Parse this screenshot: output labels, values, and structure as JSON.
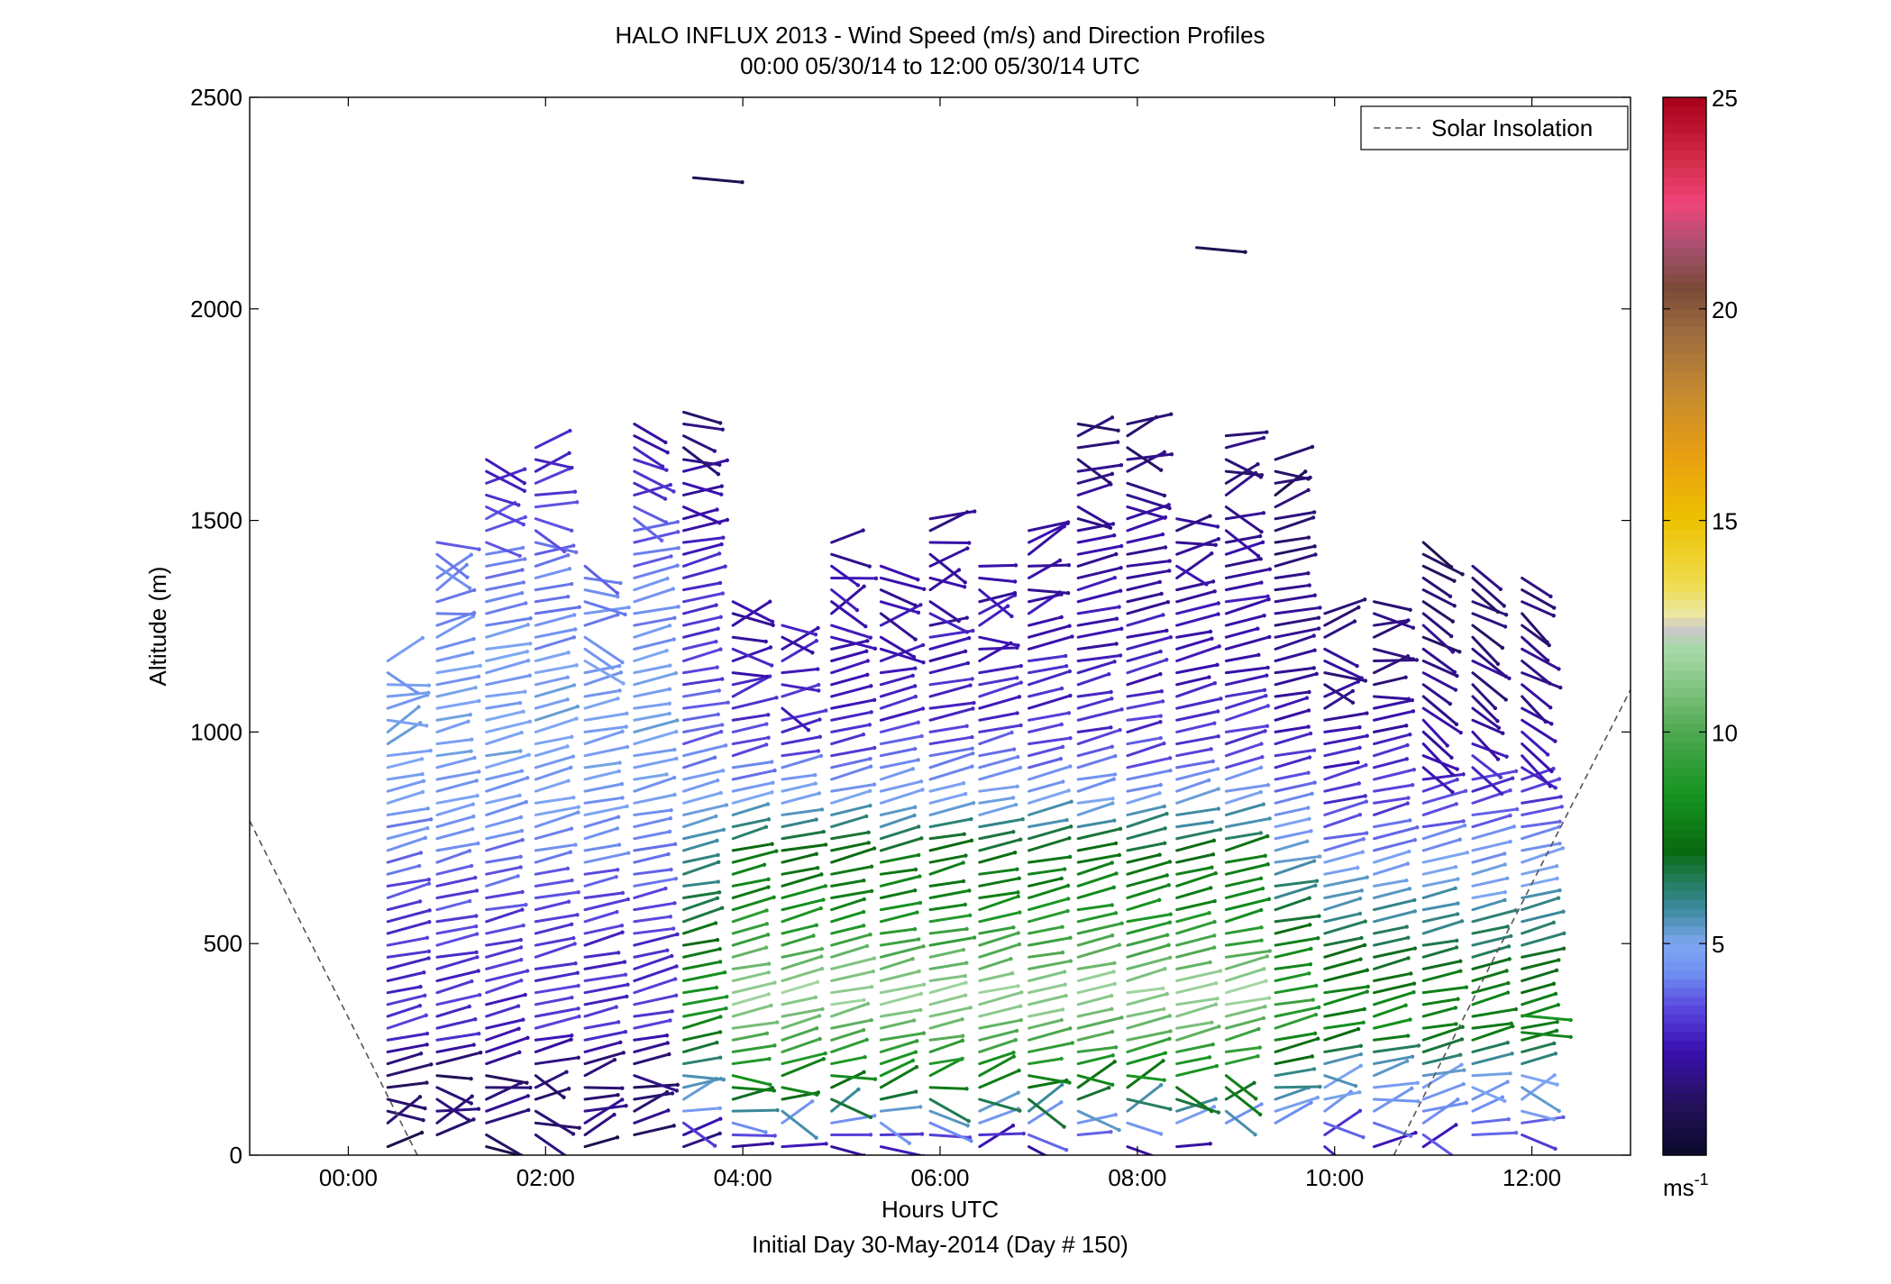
{
  "chart_data": {
    "type": "wind-barb-profile",
    "title": "HALO INFLUX 2013 - Wind Speed (m/s) and Direction Profiles",
    "subtitle": "00:00 05/30/14 to 12:00 05/30/14  UTC",
    "xlabel": "Hours UTC",
    "xlabel2": "Initial Day 30-May-2014 (Day # 150)",
    "ylabel": "Altitude (m)",
    "xlim": [
      -1.0,
      13.0
    ],
    "ylim": [
      0,
      2500
    ],
    "x_ticks": [
      {
        "value": 0,
        "label": "00:00"
      },
      {
        "value": 2,
        "label": "02:00"
      },
      {
        "value": 4,
        "label": "04:00"
      },
      {
        "value": 6,
        "label": "06:00"
      },
      {
        "value": 8,
        "label": "08:00"
      },
      {
        "value": 10,
        "label": "10:00"
      },
      {
        "value": 12,
        "label": "12:00"
      }
    ],
    "y_ticks": [
      {
        "value": 0,
        "label": "0"
      },
      {
        "value": 500,
        "label": "500"
      },
      {
        "value": 1000,
        "label": "1000"
      },
      {
        "value": 1500,
        "label": "1500"
      },
      {
        "value": 2000,
        "label": "2000"
      },
      {
        "value": 2500,
        "label": "2500"
      }
    ],
    "legend": {
      "label": "Solar Insolation",
      "style": "dashed",
      "color": "#555555",
      "placement": "top-right"
    },
    "colorbar": {
      "label": "ms",
      "label_exponent": "-1",
      "range": [
        0,
        25
      ],
      "ticks": [
        {
          "value": 5,
          "label": "5"
        },
        {
          "value": 10,
          "label": "10"
        },
        {
          "value": 15,
          "label": "15"
        },
        {
          "value": 20,
          "label": "20"
        },
        {
          "value": 25,
          "label": "25"
        }
      ],
      "stops": [
        {
          "v": 0,
          "c": "#0a0a2a"
        },
        {
          "v": 1.2,
          "c": "#24115a"
        },
        {
          "v": 2.5,
          "c": "#3a10b0"
        },
        {
          "v": 3.5,
          "c": "#5a48e0"
        },
        {
          "v": 4.3,
          "c": "#6f8ff0"
        },
        {
          "v": 5.0,
          "c": "#7ea7f2"
        },
        {
          "v": 5.8,
          "c": "#3d8aa0"
        },
        {
          "v": 6.6,
          "c": "#207a50"
        },
        {
          "v": 7.2,
          "c": "#0a6a10"
        },
        {
          "v": 8.5,
          "c": "#159320"
        },
        {
          "v": 10.0,
          "c": "#4ea850"
        },
        {
          "v": 11.5,
          "c": "#96cf96"
        },
        {
          "v": 12.0,
          "c": "#a8d8a8"
        },
        {
          "v": 12.4,
          "c": "#c8c8c8"
        },
        {
          "v": 12.8,
          "c": "#ece7a0"
        },
        {
          "v": 13.5,
          "c": "#f0dc50"
        },
        {
          "v": 15.0,
          "c": "#ecc200"
        },
        {
          "v": 16.5,
          "c": "#e9a010"
        },
        {
          "v": 18.0,
          "c": "#c68a30"
        },
        {
          "v": 19.5,
          "c": "#9a6a3f"
        },
        {
          "v": 20.5,
          "c": "#7a4a38"
        },
        {
          "v": 21.5,
          "c": "#a85070"
        },
        {
          "v": 22.5,
          "c": "#f0457a"
        },
        {
          "v": 23.5,
          "c": "#d22c4a"
        },
        {
          "v": 25.0,
          "c": "#a8001a"
        }
      ]
    },
    "solar_insolation": [
      {
        "segment": "evening",
        "points": [
          [
            -1.0,
            790
          ],
          [
            0.7,
            0
          ]
        ]
      },
      {
        "segment": "morning",
        "points": [
          [
            10.6,
            0
          ],
          [
            13.0,
            1100
          ]
        ]
      }
    ],
    "profile_times_hours": [
      0.4,
      0.9,
      1.4,
      1.9,
      2.4,
      2.9,
      3.4,
      3.9,
      4.4,
      4.9,
      5.4,
      5.9,
      6.4,
      6.9,
      7.4,
      7.9,
      8.4,
      8.9,
      9.4,
      9.9,
      10.4,
      10.9,
      11.4,
      11.9
    ],
    "profile_tops_m": [
      1170,
      1460,
      1670,
      1690,
      1400,
      1750,
      1760,
      1330,
      1260,
      1460,
      1410,
      1510,
      1400,
      1480,
      1740,
      1740,
      1530,
      1710,
      1650,
      1290,
      1320,
      1450,
      1400,
      1380
    ],
    "speed_by_altitude_m_s": {
      "altitudes_m": [
        0,
        50,
        100,
        150,
        200,
        250,
        300,
        350,
        400,
        500,
        600,
        700,
        800,
        900,
        1000,
        1100,
        1200,
        1300,
        1400,
        1500,
        1600,
        1700,
        1800
      ],
      "early_0000_0300": [
        1.0,
        1.5,
        2.0,
        1.5,
        1.5,
        2.5,
        3.0,
        3.0,
        3.0,
        3.2,
        3.5,
        4.0,
        4.5,
        4.8,
        5.0,
        4.8,
        4.5,
        4.2,
        4.0,
        3.5,
        3.0,
        2.5,
        2.0
      ],
      "mid_0330_0900": [
        1.5,
        3.5,
        5.5,
        7.5,
        8.5,
        9.5,
        10.5,
        11.5,
        11.5,
        9.5,
        8.0,
        7.5,
        5.5,
        4.0,
        3.2,
        2.8,
        2.6,
        2.4,
        2.2,
        2.0,
        1.8,
        1.5,
        1.2
      ],
      "late_0930_1230": [
        2.0,
        3.5,
        4.5,
        5.0,
        5.5,
        7.0,
        8.0,
        8.0,
        7.5,
        6.5,
        5.5,
        4.5,
        3.5,
        3.0,
        2.5,
        2.0,
        1.8,
        1.5,
        1.5,
        1.2,
        1.0,
        1.0,
        1.0
      ]
    },
    "isolated_barbs": [
      {
        "time_h": 3.5,
        "alt_m": 2310,
        "speed_m_s": 1.0
      },
      {
        "time_h": 8.6,
        "alt_m": 2145,
        "speed_m_s": 1.0
      },
      {
        "time_h": 11.9,
        "alt_m": 330,
        "speed_m_s": 8.5
      },
      {
        "time_h": 11.9,
        "alt_m": 290,
        "speed_m_s": 8.0
      }
    ]
  }
}
